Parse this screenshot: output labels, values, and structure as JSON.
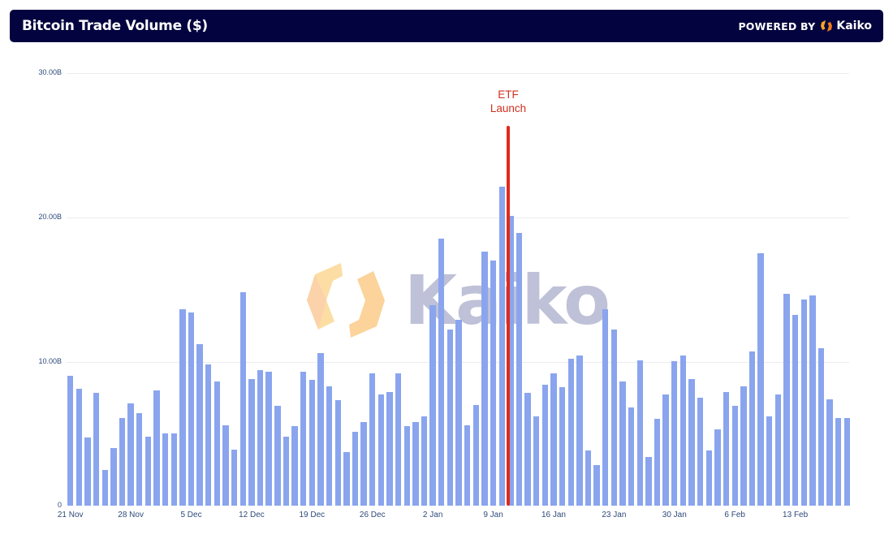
{
  "header": {
    "title": "Bitcoin Trade Volume ($)",
    "powered_by": "POWERED BY",
    "brand": "Kaiko"
  },
  "watermark": {
    "text": "Kaiko"
  },
  "annotation": {
    "line1": "ETF",
    "line2": "Launch",
    "color": "#e02a1c"
  },
  "colors": {
    "header_bg": "#03033f",
    "bar": "#8aa5ee",
    "annotation": "#e02a1c",
    "axis_text": "#2e4a7a"
  },
  "chart_data": {
    "type": "bar",
    "title": "Bitcoin Trade Volume ($)",
    "xlabel": "",
    "ylabel": "",
    "ylim": [
      0,
      30
    ],
    "y_unit": "B",
    "y_ticks": [
      "0",
      "10.00B",
      "20.00B",
      "30.00B"
    ],
    "x_ticks": [
      "21 Nov",
      "28 Nov",
      "5 Dec",
      "12 Dec",
      "19 Dec",
      "26 Dec",
      "2 Jan",
      "9 Jan",
      "16 Jan",
      "23 Jan",
      "30 Jan",
      "6 Feb",
      "13 Feb"
    ],
    "grid": true,
    "legend": null,
    "annotations": [
      {
        "text": "ETF Launch",
        "x_between": [
          "10 Jan",
          "11 Jan"
        ],
        "type": "vertical-line"
      }
    ],
    "categories": [
      "21 Nov",
      "22 Nov",
      "23 Nov",
      "24 Nov",
      "25 Nov",
      "26 Nov",
      "27 Nov",
      "28 Nov",
      "29 Nov",
      "30 Nov",
      "1 Dec",
      "2 Dec",
      "3 Dec",
      "4 Dec",
      "5 Dec",
      "6 Dec",
      "7 Dec",
      "8 Dec",
      "9 Dec",
      "10 Dec",
      "11 Dec",
      "12 Dec",
      "13 Dec",
      "14 Dec",
      "15 Dec",
      "16 Dec",
      "17 Dec",
      "18 Dec",
      "19 Dec",
      "20 Dec",
      "21 Dec",
      "22 Dec",
      "23 Dec",
      "24 Dec",
      "25 Dec",
      "26 Dec",
      "27 Dec",
      "28 Dec",
      "29 Dec",
      "30 Dec",
      "31 Dec",
      "1 Jan",
      "2 Jan",
      "3 Jan",
      "4 Jan",
      "5 Jan",
      "6 Jan",
      "7 Jan",
      "8 Jan",
      "9 Jan",
      "10 Jan",
      "11 Jan",
      "12 Jan",
      "13 Jan",
      "14 Jan",
      "15 Jan",
      "16 Jan",
      "17 Jan",
      "18 Jan",
      "19 Jan",
      "20 Jan",
      "21 Jan",
      "22 Jan",
      "23 Jan",
      "24 Jan",
      "25 Jan",
      "26 Jan",
      "27 Jan",
      "28 Jan",
      "29 Jan",
      "30 Jan",
      "31 Jan",
      "1 Feb",
      "2 Feb",
      "3 Feb",
      "4 Feb",
      "5 Feb",
      "6 Feb",
      "7 Feb",
      "8 Feb",
      "9 Feb",
      "10 Feb",
      "11 Feb",
      "12 Feb",
      "13 Feb",
      "14 Feb",
      "15 Feb",
      "16 Feb",
      "17 Feb",
      "18 Feb",
      "19 Feb"
    ],
    "values": [
      9.0,
      8.1,
      4.7,
      7.8,
      2.5,
      4.0,
      6.1,
      7.1,
      6.4,
      4.8,
      8.0,
      5.0,
      5.0,
      13.6,
      13.4,
      11.2,
      9.8,
      8.6,
      5.6,
      3.9,
      14.8,
      8.8,
      9.4,
      9.3,
      6.9,
      4.8,
      5.5,
      9.3,
      8.7,
      10.6,
      8.3,
      7.3,
      3.7,
      5.1,
      5.8,
      9.2,
      7.7,
      7.9,
      9.2,
      5.5,
      5.8,
      6.2,
      13.9,
      18.5,
      12.2,
      12.9,
      5.6,
      7.0,
      17.6,
      17.0,
      22.1,
      20.1,
      18.9,
      7.8,
      6.2,
      8.4,
      9.2,
      8.2,
      10.2,
      10.4,
      3.8,
      2.8,
      13.6,
      12.2,
      8.6,
      6.8,
      10.1,
      3.4,
      6.0,
      7.7,
      10.0,
      10.4,
      8.8,
      7.5,
      3.8,
      5.3,
      7.9,
      6.9,
      8.3,
      10.7,
      17.5,
      6.2,
      7.7,
      14.7,
      13.2,
      14.3,
      14.6,
      10.9,
      7.4,
      6.1,
      6.1
    ]
  }
}
